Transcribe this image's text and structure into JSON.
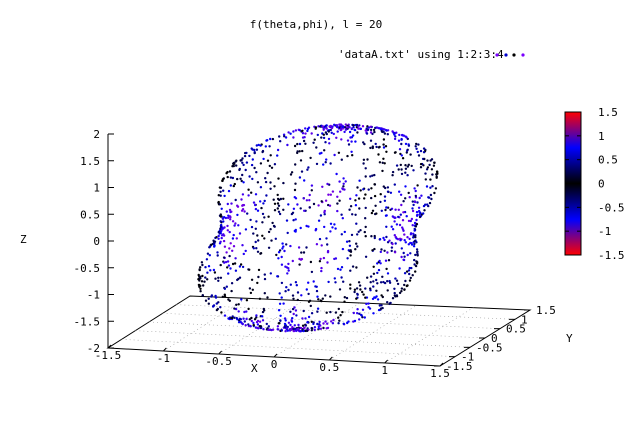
{
  "chart_data": {
    "type": "scatter",
    "title": "f(theta,phi), l = 20",
    "legend": {
      "text": "'dataA.txt' using 1:2:3:4",
      "placement": "top-right"
    },
    "xlabel": "X",
    "ylabel": "Y",
    "zlabel": "Z",
    "xlim": [
      -1.5,
      1.5
    ],
    "ylim": [
      -1.5,
      1.5
    ],
    "zlim": [
      -2,
      2
    ],
    "x_ticks": [
      "-1.5",
      "-1",
      "-0.5",
      "0",
      "0.5",
      "1",
      "1.5"
    ],
    "y_ticks": [
      "-1.5",
      "-1",
      "-0.5",
      "0",
      "0.5",
      "1",
      "1.5"
    ],
    "z_ticks": [
      "-2",
      "-1.5",
      "-1",
      "-0.5",
      "0",
      "0.5",
      "1",
      "1.5",
      "2"
    ],
    "colorbar": {
      "range": [
        -1.5,
        1.5
      ],
      "ticks": [
        "-1.5",
        "-1",
        "-0.5",
        "0",
        "0.5",
        "1",
        "1.5"
      ],
      "palette": [
        "#ff0000",
        "#0000ff",
        "#000000",
        "#0000ff",
        "#ff0000"
      ]
    },
    "surface": "spherical harmonic point cloud f(theta,phi), l = 20",
    "grid": "dotted base grid on XY plane"
  }
}
